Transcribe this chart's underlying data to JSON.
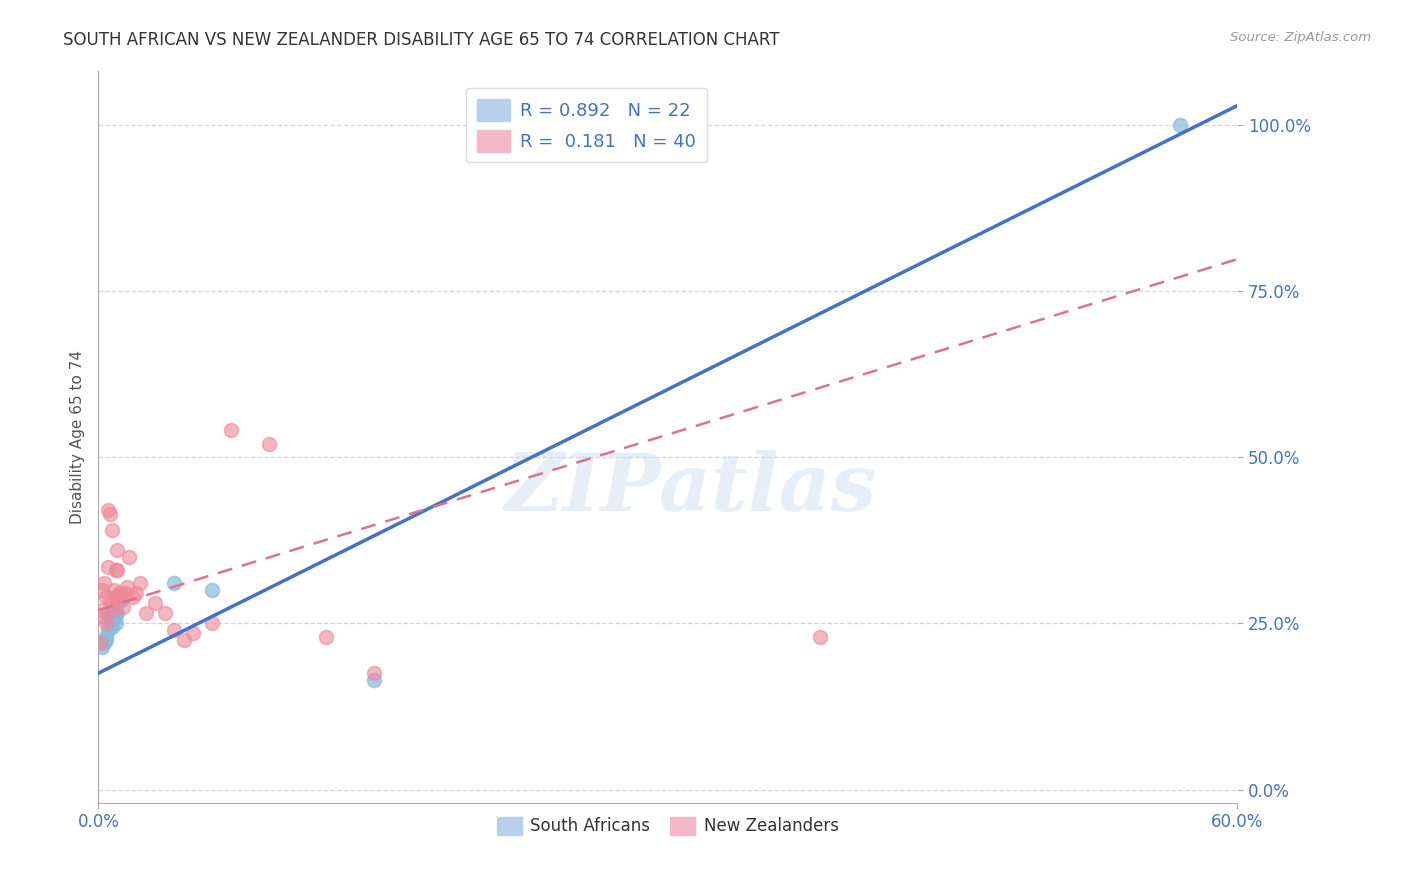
{
  "title": "SOUTH AFRICAN VS NEW ZEALANDER DISABILITY AGE 65 TO 74 CORRELATION CHART",
  "source": "Source: ZipAtlas.com",
  "ylabel": "Disability Age 65 to 74",
  "watermark": "ZIPatlas",
  "xlim": [
    0.0,
    0.6
  ],
  "ylim": [
    -0.02,
    1.08
  ],
  "x_ticks": [
    0.0,
    0.6
  ],
  "x_tick_labels": [
    "0.0%",
    "60.0%"
  ],
  "y_ticks": [
    0.0,
    0.25,
    0.5,
    0.75,
    1.0
  ],
  "y_tick_labels": [
    "0.0%",
    "25.0%",
    "50.0%",
    "75.0%",
    "100.0%"
  ],
  "south_africans": {
    "color": "#88bbdd",
    "x": [
      0.002,
      0.003,
      0.004,
      0.004,
      0.005,
      0.005,
      0.006,
      0.006,
      0.007,
      0.007,
      0.008,
      0.008,
      0.009,
      0.009,
      0.01,
      0.01,
      0.011,
      0.012,
      0.04,
      0.06,
      0.145,
      0.57
    ],
    "y": [
      0.215,
      0.22,
      0.23,
      0.225,
      0.265,
      0.24,
      0.25,
      0.26,
      0.245,
      0.255,
      0.255,
      0.265,
      0.25,
      0.265,
      0.265,
      0.28,
      0.29,
      0.285,
      0.31,
      0.3,
      0.165,
      1.0
    ]
  },
  "new_zealanders": {
    "color": "#ee8899",
    "x": [
      0.001,
      0.002,
      0.002,
      0.003,
      0.003,
      0.004,
      0.004,
      0.005,
      0.005,
      0.006,
      0.006,
      0.007,
      0.007,
      0.008,
      0.008,
      0.009,
      0.009,
      0.01,
      0.01,
      0.011,
      0.012,
      0.013,
      0.014,
      0.015,
      0.016,
      0.018,
      0.02,
      0.022,
      0.025,
      0.03,
      0.035,
      0.04,
      0.045,
      0.05,
      0.06,
      0.07,
      0.09,
      0.12,
      0.145,
      0.38
    ],
    "y": [
      0.22,
      0.3,
      0.27,
      0.26,
      0.31,
      0.25,
      0.29,
      0.335,
      0.42,
      0.285,
      0.415,
      0.28,
      0.39,
      0.27,
      0.3,
      0.29,
      0.33,
      0.33,
      0.36,
      0.295,
      0.295,
      0.275,
      0.295,
      0.305,
      0.35,
      0.29,
      0.295,
      0.31,
      0.265,
      0.28,
      0.265,
      0.24,
      0.225,
      0.235,
      0.25,
      0.54,
      0.52,
      0.23,
      0.175,
      0.23
    ]
  },
  "title_fontsize": 12,
  "tick_color": "#4472c4",
  "grid_color": "#cccccc",
  "background_color": "#ffffff"
}
